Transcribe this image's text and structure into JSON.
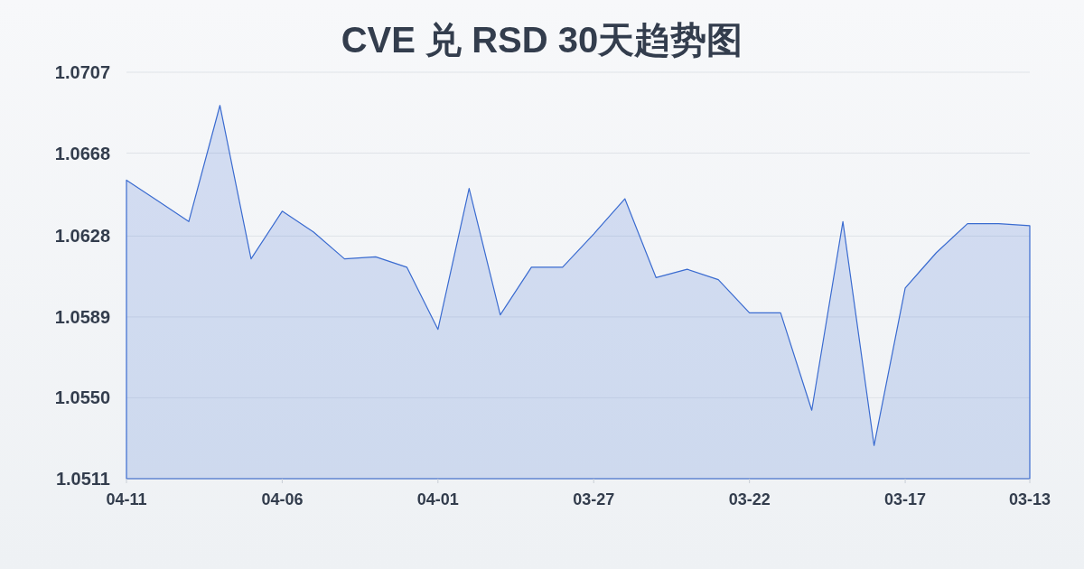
{
  "chart_data": {
    "type": "area",
    "title": "CVE 兑 RSD 30天趋势图",
    "categories": [
      "04-11",
      null,
      null,
      null,
      null,
      "04-06",
      null,
      null,
      null,
      null,
      "04-01",
      null,
      null,
      null,
      null,
      "03-27",
      null,
      null,
      null,
      null,
      "03-22",
      null,
      null,
      null,
      null,
      "03-17",
      null,
      null,
      null,
      "03-13"
    ],
    "series": [
      {
        "color": "#3a6bd0",
        "values": [
          1.0655,
          1.0645,
          1.0635,
          1.0691,
          1.0617,
          1.064,
          1.063,
          1.0617,
          1.0618,
          1.0613,
          1.0583,
          1.0651,
          1.059,
          1.0613,
          1.0613,
          1.0629,
          1.0646,
          1.0608,
          1.0612,
          1.0607,
          1.0591,
          1.0591,
          1.0544,
          1.0635,
          1.0527,
          1.0603,
          1.062,
          1.0634,
          1.0634,
          1.0633
        ]
      }
    ],
    "ylim": [
      1.0511,
      1.0707
    ],
    "yticks": [
      1.0511,
      {
        "value": 1.055,
        "label": "1.0550"
      },
      1.0589,
      1.0628,
      1.0668,
      1.0707
    ],
    "grid": "y"
  }
}
